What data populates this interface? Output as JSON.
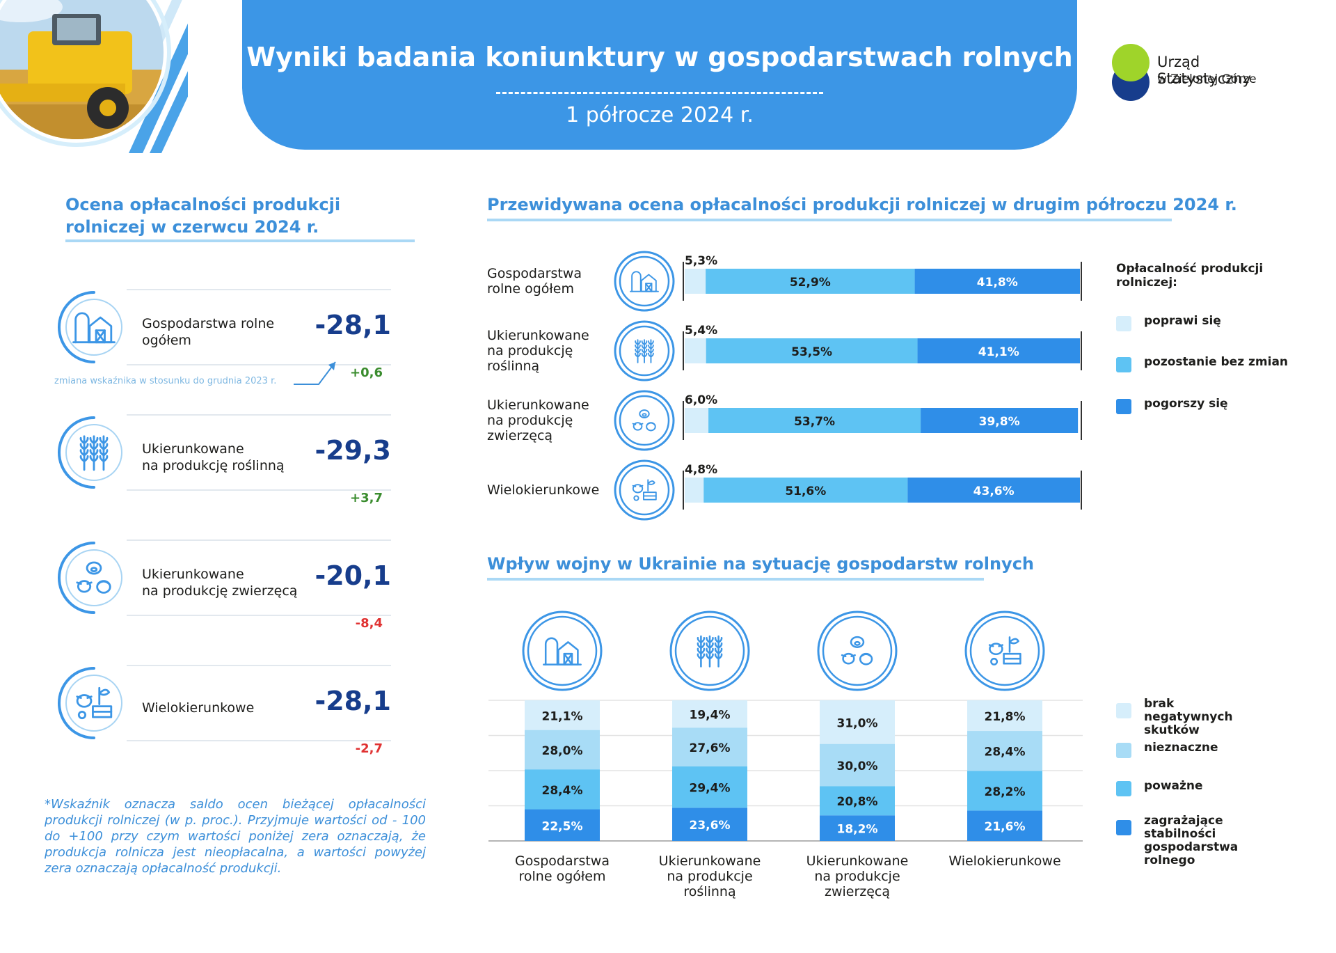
{
  "header": {
    "title": "Wyniki badania koniunktury w gospodarstwach rolnych",
    "subtitle": "1 półrocze 2024 r."
  },
  "logo": {
    "line1": "Urząd Statystyczny",
    "line2": "w Zielonej Górze"
  },
  "left_panel": {
    "title_line1": "Ocena opłacalności produkcji",
    "title_line2": "rolniczej w czerwcu 2024 r.",
    "change_note": "zmiana wskaźnika w stosunku do grudnia 2023 r.",
    "items": [
      {
        "label_line1": "Gospodarstwa rolne",
        "label_line2": "ogółem",
        "value": "-28,1",
        "change": "+0,6",
        "change_sign": "pos",
        "icon": "farm-icon"
      },
      {
        "label_line1": "Ukierunkowane",
        "label_line2": "na produkcję roślinną",
        "value": "-29,3",
        "change": "+3,7",
        "change_sign": "pos",
        "icon": "wheat-icon"
      },
      {
        "label_line1": "Ukierunkowane",
        "label_line2": "na produkcję zwierzęcą",
        "value": "-20,1",
        "change": "-8,4",
        "change_sign": "neg",
        "icon": "livestock-icon"
      },
      {
        "label_line1": "Wielokierunkowe",
        "label_line2": "",
        "value": "-28,1",
        "change": "-2,7",
        "change_sign": "neg",
        "icon": "mixed-farm-icon"
      }
    ],
    "footnote": "*Wskaźnik oznacza saldo ocen bieżącej opłacalności produkcji rolniczej (w p. proc.). Przyjmuje wartości od - 100 do +100 przy czym wartości poniżej zera oznaczają, że produkcja rolnicza jest nieopłacalna, a wartości powyżej zera oznaczają opłacalność produkcji."
  },
  "colors": {
    "banner": "#3c96e6",
    "title_blue": "#3c8fd9",
    "navy": "#173d8c",
    "very_light": "#d6eefb",
    "light": "#a8dcf6",
    "medium": "#5ec3f3",
    "dark": "#2f8ee8"
  },
  "chart_data": [
    {
      "type": "bar",
      "orientation": "horizontal",
      "stacked": true,
      "title": "Przewidywana ocena opłacalności produkcji rolniczej w drugim półroczu 2024 r.",
      "categories": [
        [
          "Gospodarstwa",
          "rolne ogółem"
        ],
        [
          "Ukierunkowane",
          "na produkcję",
          "roślinną"
        ],
        [
          "Ukierunkowane",
          "na produkcję",
          "zwierzęcą"
        ],
        [
          "Wielokierunkowe"
        ]
      ],
      "category_icons": [
        "farm-icon",
        "wheat-icon",
        "livestock-icon",
        "mixed-farm-icon"
      ],
      "legend_title": "Opłacalność produkcji rolniczej:",
      "series": [
        {
          "name": "poprawi się",
          "values": [
            5.3,
            5.4,
            6.0,
            4.8
          ],
          "labels": [
            "5,3%",
            "5,4%",
            "6,0%",
            "4,8%"
          ],
          "color": "#d6eefb"
        },
        {
          "name": "pozostanie bez zmian",
          "values": [
            52.9,
            53.5,
            53.7,
            51.6
          ],
          "labels": [
            "52,9%",
            "53,5%",
            "53,7%",
            "51,6%"
          ],
          "color": "#5ec3f3"
        },
        {
          "name": "pogorszy się",
          "values": [
            41.8,
            41.1,
            39.8,
            43.6
          ],
          "labels": [
            "41,8%",
            "41,1%",
            "39,8%",
            "43,6%"
          ],
          "color": "#2f8ee8"
        }
      ],
      "xlim": [
        0,
        100
      ]
    },
    {
      "type": "bar",
      "orientation": "vertical",
      "stacked": true,
      "title": "Wpływ wojny w Ukrainie na sytuację gospodarstw rolnych",
      "categories": [
        [
          "Gospodarstwa",
          "rolne ogółem"
        ],
        [
          "Ukierunkowane",
          "na produkcje",
          "roślinną"
        ],
        [
          "Ukierunkowane",
          "na produkcje",
          "zwierzęcą"
        ],
        [
          "Wielokierunkowe"
        ]
      ],
      "category_icons": [
        "farm-icon",
        "wheat-icon",
        "livestock-icon",
        "mixed-farm-icon"
      ],
      "series": [
        {
          "name": "zagrażające stabilności gospodarstwa rolnego",
          "values": [
            22.5,
            23.6,
            18.2,
            21.6
          ],
          "labels": [
            "22,5%",
            "23,6%",
            "18,2%",
            "21,6%"
          ],
          "color": "#2f8ee8"
        },
        {
          "name": "poważne",
          "values": [
            28.4,
            29.4,
            20.8,
            28.2
          ],
          "labels": [
            "28,4%",
            "29,4%",
            "20,8%",
            "28,2%"
          ],
          "color": "#5ec3f3"
        },
        {
          "name": "nieznaczne",
          "values": [
            28.0,
            27.6,
            30.0,
            28.4
          ],
          "labels": [
            "28,0%",
            "27,6%",
            "30,0%",
            "28,4%"
          ],
          "color": "#a8dcf6"
        },
        {
          "name": "brak negatywnych skutków",
          "values": [
            21.1,
            19.4,
            31.0,
            21.8
          ],
          "labels": [
            "21,1%",
            "19,4%",
            "31,0%",
            "21,8%"
          ],
          "color": "#d6eefb"
        }
      ],
      "legend_order": [
        "brak negatywnych skutków",
        "nieznaczne",
        "poważne",
        "zagrażające stabilności gospodarstwa rolnego"
      ],
      "ylim": [
        0,
        100
      ]
    }
  ]
}
